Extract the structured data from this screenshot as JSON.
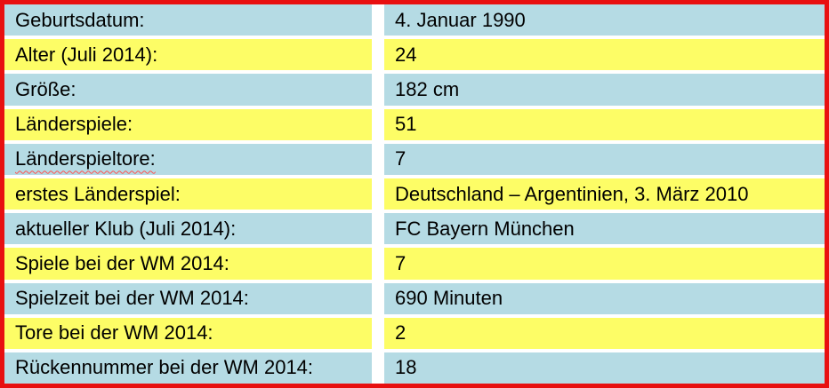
{
  "theme": {
    "border_color": "#e81010",
    "row_color_blue": "#b5dbe4",
    "row_color_yellow": "#fdfd66",
    "gap_color": "#ffffff",
    "text_color": "#000000",
    "spellcheck_color": "#ff5050"
  },
  "table": {
    "rows": [
      {
        "label": "Geburtsdatum:",
        "value": "4. Januar 1990",
        "shade": "blue",
        "spellcheck": false
      },
      {
        "label": "Alter (Juli 2014):",
        "value": "24",
        "shade": "yellow",
        "spellcheck": false
      },
      {
        "label": "Größe:",
        "value": "182 cm",
        "shade": "blue",
        "spellcheck": false
      },
      {
        "label": "Länderspiele:",
        "value": "51",
        "shade": "yellow",
        "spellcheck": false
      },
      {
        "label": "Länderspieltore:",
        "value": "7",
        "shade": "blue",
        "spellcheck": true
      },
      {
        "label": "erstes Länderspiel:",
        "value": "Deutschland – Argentinien, 3. März 2010",
        "shade": "yellow",
        "spellcheck": false
      },
      {
        "label": "aktueller Klub (Juli 2014):",
        "value": "FC Bayern München",
        "shade": "blue",
        "spellcheck": false
      },
      {
        "label": "Spiele bei der WM 2014:",
        "value": "7",
        "shade": "yellow",
        "spellcheck": false
      },
      {
        "label": "Spielzeit bei der WM 2014:",
        "value": "690 Minuten",
        "shade": "blue",
        "spellcheck": false
      },
      {
        "label": "Tore bei der WM 2014:",
        "value": "2",
        "shade": "yellow",
        "spellcheck": false
      },
      {
        "label": "Rückennummer bei der WM 2014:",
        "value": "18",
        "shade": "blue",
        "spellcheck": false
      }
    ]
  }
}
